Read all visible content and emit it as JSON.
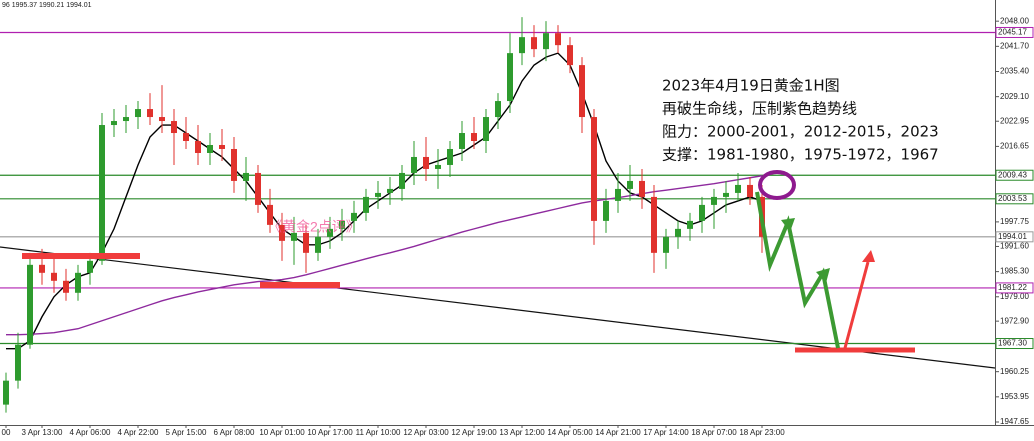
{
  "chart_data": {
    "type": "candlestick",
    "info": "96 1995.37 1990.21 1994.01",
    "annotation": [
      "2023年4月19日黄金1H图",
      "再破生命线，压制紫色趋势线",
      "阻力：2000-2001，2012-2015，2023",
      "支撑：1981-1980，1975-1972，1967"
    ],
    "watermark": "《黄金2点评》",
    "categories": [
      "00",
      null,
      null,
      "3 Apr 13:00",
      null,
      null,
      null,
      "4 Apr 06:00",
      null,
      null,
      null,
      "4 Apr 22:00",
      null,
      null,
      null,
      "5 Apr 15:00",
      null,
      null,
      null,
      "6 Apr 08:00",
      null,
      null,
      null,
      "10 Apr 01:00",
      null,
      null,
      null,
      "10 Apr 17:00",
      null,
      null,
      null,
      "11 Apr 10:00",
      null,
      null,
      null,
      "12 Apr 03:00",
      null,
      null,
      null,
      "12 Apr 19:00",
      null,
      null,
      null,
      "13 Apr 12:00",
      null,
      null,
      null,
      "14 Apr 05:00",
      null,
      null,
      null,
      "14 Apr 21:00",
      null,
      null,
      null,
      "17 Apr 14:00",
      null,
      null,
      null,
      "18 Apr 07:00",
      null,
      null,
      null,
      "18 Apr 23:00"
    ],
    "open": [
      1952,
      1958,
      1967,
      1987,
      1985,
      1983,
      1980,
      1985,
      1988,
      2022,
      2023,
      2024,
      2026,
      2024,
      2023,
      2020,
      2018,
      2015,
      2017,
      2016,
      2008,
      2010,
      2002,
      1997,
      1993,
      1995,
      1990,
      1994,
      1996,
      1998,
      2000,
      2004,
      2005,
      2006,
      2010,
      2014,
      2011,
      2012,
      2016,
      2020,
      2018,
      2024,
      2028,
      2040,
      2044,
      2041,
      2045,
      2042,
      2037,
      2024,
      1998,
      2003,
      2006,
      2008,
      2004,
      1990,
      1994,
      1996,
      1998,
      2002,
      2004,
      2005,
      2007,
      2004
    ],
    "high": [
      1960,
      1970,
      1990,
      1991,
      1989,
      1986,
      1987,
      1990,
      2025,
      2026,
      2027,
      2028,
      2030,
      2032,
      2026,
      2024,
      2022,
      2020,
      2021,
      2019,
      2014,
      2012,
      2006,
      2000,
      1999,
      1997,
      1996,
      1999,
      2001,
      2003,
      2006,
      2008,
      2009,
      2012,
      2018,
      2019,
      2016,
      2018,
      2023,
      2024,
      2026,
      2030,
      2045,
      2049,
      2047,
      2048,
      2047,
      2044,
      2039,
      2026,
      2006,
      2010,
      2012,
      2011,
      2007,
      1996,
      1998,
      2000,
      2004,
      2006,
      2008,
      2010,
      2009,
      2007
    ],
    "low": [
      1950,
      1956,
      1966,
      1982,
      1980,
      1978,
      1978,
      1982,
      1987,
      2019,
      2020,
      2021,
      2022,
      2020,
      2012,
      2016,
      2012,
      2012,
      2013,
      2005,
      2003,
      2000,
      1995,
      1988,
      1987,
      1985,
      1988,
      1991,
      1993,
      1995,
      1998,
      2001,
      2002,
      2003,
      2007,
      2008,
      2006,
      2009,
      2013,
      2016,
      2015,
      2021,
      2025,
      2037,
      2039,
      2038,
      2040,
      2035,
      2020,
      1992,
      1995,
      2000,
      2003,
      2001,
      1985,
      1986,
      1991,
      1993,
      1995,
      1996,
      2000,
      2003,
      2002,
      1990
    ],
    "close": [
      1958,
      1967,
      1987,
      1985,
      1983,
      1980,
      1985,
      1988,
      2022,
      2023,
      2024,
      2026,
      2024,
      2023,
      2020,
      2018,
      2015,
      2017,
      2016,
      2008,
      2010,
      2002,
      1997,
      1993,
      1995,
      1990,
      1994,
      1996,
      1998,
      2000,
      2004,
      2005,
      2006,
      2010,
      2014,
      2011,
      2012,
      2016,
      2020,
      2018,
      2024,
      2028,
      2040,
      2044,
      2041,
      2045,
      2042,
      2037,
      2024,
      1998,
      2003,
      2006,
      2008,
      2004,
      1990,
      1994,
      1996,
      1998,
      2002,
      2004,
      2005,
      2007,
      2004,
      1994.01
    ],
    "up_color": "#2e9b2e",
    "down_color": "#e0322d",
    "moving_averages": [
      {
        "color": "#000000",
        "values": [
          1966,
          1966,
          1968,
          1974,
          1979,
          1982,
          1984,
          1985,
          1990,
          1996,
          2004,
          2012,
          2019,
          2022,
          2022,
          2020,
          2018,
          2016,
          2014,
          2011,
          2008,
          2004,
          2000,
          1996,
          1994,
          1992,
          1992,
          1993,
          1995,
          1998,
          2001,
          2003,
          2005,
          2007,
          2010,
          2012,
          2013,
          2014,
          2015,
          2017,
          2019,
          2023,
          2027,
          2033,
          2037,
          2039,
          2040,
          2037,
          2030,
          2022,
          2013,
          2008,
          2005,
          2004,
          2002,
          2000,
          1998,
          1997,
          1998,
          2000,
          2002,
          2003,
          2004,
          2003
        ]
      },
      {
        "color": "#8e2a9e",
        "values": [
          1969.5,
          1969.5,
          1969.6,
          1969.8,
          1970,
          1970.5,
          1971,
          1972,
          1973,
          1974,
          1975,
          1976,
          1977,
          1978,
          1978.8,
          1979.5,
          1980.2,
          1980.8,
          1981.4,
          1982,
          1982.4,
          1982.8,
          1983,
          1983.3,
          1983.8,
          1984.5,
          1985.3,
          1986.1,
          1986.9,
          1987.7,
          1988.5,
          1989.3,
          1990,
          1990.8,
          1991.6,
          1992.5,
          1993.4,
          1994.3,
          1995.2,
          1996,
          1996.8,
          1997.6,
          1998.3,
          1999,
          1999.7,
          2000.4,
          2001.1,
          2001.8,
          2002.5,
          2003,
          2003.4,
          2003.8,
          2004.3,
          2004.8,
          2005.3,
          2005.7,
          2006.1,
          2006.5,
          2006.9,
          2007.3,
          2007.8,
          2008.3,
          2008.8,
          2009.3
        ]
      }
    ],
    "levels": [
      {
        "value": 2045.17,
        "label": "2045.17",
        "color": "#b020b0"
      },
      {
        "value": 2009.43,
        "label": "2009.43",
        "color": "#2a8a2a"
      },
      {
        "value": 2003.53,
        "label": "2003.53",
        "color": "#2a8a2a"
      },
      {
        "value": 1994.01,
        "label": "1994.01",
        "color": "#999999"
      },
      {
        "value": 1981.22,
        "label": "1981.22",
        "color": "#b020b0"
      },
      {
        "value": 1967.3,
        "label": "1967.30",
        "color": "#2a8a2a"
      }
    ],
    "ylim": [
      1946.9,
      2053.3
    ],
    "yticks": [
      {
        "value": 2048,
        "label": "2048.00"
      },
      {
        "value": 2041.7,
        "label": "2041.70"
      },
      {
        "value": 2035.4,
        "label": "2035.40"
      },
      {
        "value": 2029.1,
        "label": "2029.10"
      },
      {
        "value": 2022.95,
        "label": "2022.95"
      },
      {
        "value": 2016.65,
        "label": "2016.65"
      },
      {
        "value": 1997.75,
        "label": "1997.75"
      },
      {
        "value": 1991.6,
        "label": "1991.60"
      },
      {
        "value": 1985.3,
        "label": "1985.30"
      },
      {
        "value": 1979,
        "label": "1979.00"
      },
      {
        "value": 1972.9,
        "label": "1972.90"
      },
      {
        "value": 1960.25,
        "label": "1960.25"
      },
      {
        "value": 1953.95,
        "label": "1953.95"
      },
      {
        "value": 1947.65,
        "label": "1947.65"
      }
    ]
  }
}
